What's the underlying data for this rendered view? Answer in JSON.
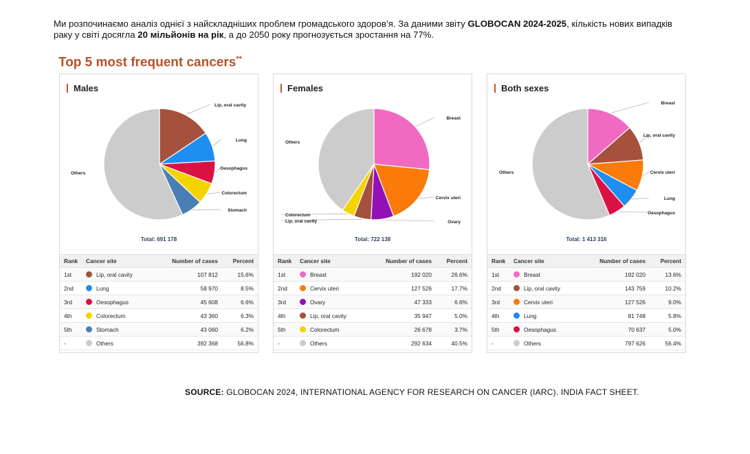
{
  "intro": {
    "part1": "Ми розпочинаємо аналіз однієї з найскладніших проблем громадського здоров’я. За даними звіту ",
    "bold1": "GLOBOCAN 2024-2025",
    "part2": ", кількість нових випадків раку у світі досягла ",
    "bold2": "20 мільйонів на рік",
    "part3": ", а до 2050 року прогнозується зростання на 77%."
  },
  "heading": {
    "text": "Top 5 most frequent cancers",
    "mark": "**"
  },
  "table_headers": {
    "rank": "Rank",
    "site": "Cancer site",
    "cases": "Number of cases",
    "percent": "Percent"
  },
  "source": {
    "label": "SOURCE:",
    "text": " GLOBOCAN 2024, INTERNATIONAL AGENCY FOR RESEARCH ON CANCER (IARC). INDIA FACT SHEET."
  },
  "chart_data": [
    {
      "type": "pie",
      "title": "Males",
      "total_label": "Total: 691 178",
      "slices": [
        {
          "label": "Lip, oral cavity",
          "rank": "1st",
          "cases": "107 812",
          "percent": "15.6%",
          "value": 15.6,
          "color": "#a5513d"
        },
        {
          "label": "Lung",
          "rank": "2nd",
          "cases": "58 970",
          "percent": "8.5%",
          "value": 8.5,
          "color": "#1e8ef0"
        },
        {
          "label": "Oesophagus",
          "rank": "3rd",
          "cases": "45 608",
          "percent": "6.6%",
          "value": 6.6,
          "color": "#db1144"
        },
        {
          "label": "Colorectum",
          "rank": "4th",
          "cases": "43 360",
          "percent": "6.3%",
          "value": 6.3,
          "color": "#f5d300"
        },
        {
          "label": "Stomach",
          "rank": "5th",
          "cases": "43 060",
          "percent": "6.2%",
          "value": 6.2,
          "color": "#4a7fb5"
        },
        {
          "label": "Others",
          "rank": "-",
          "cases": "392 368",
          "percent": "56.8%",
          "value": 56.8,
          "color": "#cccccc"
        }
      ]
    },
    {
      "type": "pie",
      "title": "Females",
      "total_label": "Total: 722 138",
      "slices": [
        {
          "label": "Breast",
          "rank": "1st",
          "cases": "192 020",
          "percent": "26.6%",
          "value": 26.6,
          "color": "#f06ac1"
        },
        {
          "label": "Cervix uteri",
          "rank": "2nd",
          "cases": "127 526",
          "percent": "17.7%",
          "value": 17.7,
          "color": "#fa7a0a"
        },
        {
          "label": "Ovary",
          "rank": "3rd",
          "cases": "47 333",
          "percent": "6.6%",
          "value": 6.6,
          "color": "#9212b8"
        },
        {
          "label": "Lip, oral cavity",
          "rank": "4th",
          "cases": "35 947",
          "percent": "5.0%",
          "value": 5.0,
          "color": "#a5513d"
        },
        {
          "label": "Colorectum",
          "rank": "5th",
          "cases": "26 678",
          "percent": "3.7%",
          "value": 3.7,
          "color": "#f5d300"
        },
        {
          "label": "Others",
          "rank": "-",
          "cases": "292 634",
          "percent": "40.5%",
          "value": 40.5,
          "color": "#cccccc"
        }
      ],
      "chart_labels": [
        "Breast",
        "Cervix uteri",
        "Ovary",
        "Colorectum",
        "Lip, oral cavity",
        "Others"
      ]
    },
    {
      "type": "pie",
      "title": "Both sexes",
      "total_label": "Total: 1 413 316",
      "slices": [
        {
          "label": "Breast",
          "rank": "1st",
          "cases": "192 020",
          "percent": "13.6%",
          "value": 13.6,
          "color": "#f06ac1"
        },
        {
          "label": "Lip, oral cavity",
          "rank": "2nd",
          "cases": "143 759",
          "percent": "10.2%",
          "value": 10.2,
          "color": "#a5513d"
        },
        {
          "label": "Cervix uteri",
          "rank": "3rd",
          "cases": "127 526",
          "percent": "9.0%",
          "value": 9.0,
          "color": "#fa7a0a"
        },
        {
          "label": "Lung",
          "rank": "4th",
          "cases": "81 748",
          "percent": "5.8%",
          "value": 5.8,
          "color": "#1e8ef0"
        },
        {
          "label": "Oesophagus",
          "rank": "5th",
          "cases": "70 637",
          "percent": "5.0%",
          "value": 5.0,
          "color": "#db1144"
        },
        {
          "label": "Others",
          "rank": "-",
          "cases": "797 626",
          "percent": "56.4%",
          "value": 56.4,
          "color": "#cccccc"
        }
      ]
    }
  ]
}
